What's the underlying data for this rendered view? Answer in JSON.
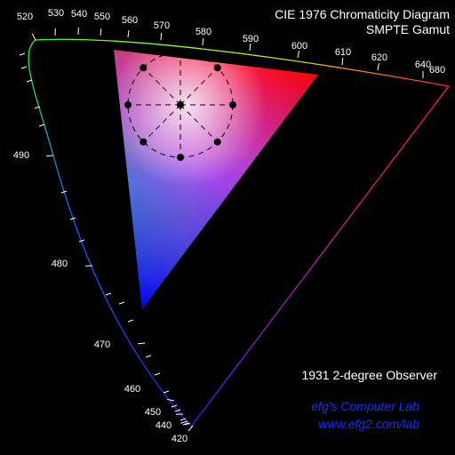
{
  "title": {
    "line1": "CIE 1976 Chromaticity Diagram",
    "line2": "SMPTE Gamut"
  },
  "observer_label": "1931 2-degree Observer",
  "credits": {
    "lab_name": "efg's Computer Lab",
    "url": "www.efg2.com/lab",
    "color": "#1b2bff"
  },
  "colors": {
    "background": "#000000",
    "text": "#ffffff",
    "ellipse_overlay": "#000000"
  },
  "diagram": {
    "color_space": "CIE 1976 u'v'",
    "gamut": "SMPTE",
    "wavelength_labels_nm": [
      {
        "wl": "420",
        "label": "420"
      },
      {
        "wl": "440",
        "label": "440"
      },
      {
        "wl": "450",
        "label": "450"
      },
      {
        "wl": "460",
        "label": "460"
      },
      {
        "wl": "470",
        "label": "470"
      },
      {
        "wl": "480",
        "label": "480"
      },
      {
        "wl": "490",
        "label": "490"
      },
      {
        "wl": "520",
        "label": "520"
      },
      {
        "wl": "530",
        "label": "530"
      },
      {
        "wl": "540",
        "label": "540"
      },
      {
        "wl": "550",
        "label": "550"
      },
      {
        "wl": "560",
        "label": "560"
      },
      {
        "wl": "570",
        "label": "570"
      },
      {
        "wl": "580",
        "label": "580"
      },
      {
        "wl": "590",
        "label": "590"
      },
      {
        "wl": "600",
        "label": "600"
      },
      {
        "wl": "610",
        "label": "610"
      },
      {
        "wl": "620",
        "label": "620"
      },
      {
        "wl": "640",
        "label": "640"
      },
      {
        "wl": "680",
        "label": "680"
      }
    ]
  }
}
